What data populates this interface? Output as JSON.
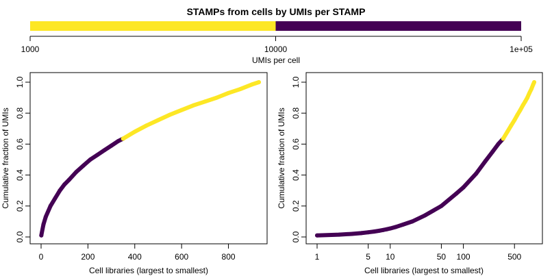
{
  "chart_data": [
    {
      "type": "bar",
      "title": "STAMPs from cells by UMIs per STAMP",
      "xlabel": "UMIs per cell",
      "x_scale": "log",
      "xlim": [
        1000,
        100000
      ],
      "x_ticks": [
        1000,
        10000,
        100000
      ],
      "x_tick_labels": [
        "1000",
        "10000",
        "1e+05"
      ],
      "segments": [
        {
          "from": 1000,
          "to": 10000,
          "color": "#FDE725"
        },
        {
          "from": 10000,
          "to": 100000,
          "color": "#440154"
        }
      ]
    },
    {
      "type": "scatter",
      "xlabel": "Cell libraries (largest to smallest)",
      "ylabel": "Cumulative fraction of UMIs",
      "xlim": [
        0,
        930
      ],
      "ylim": [
        0,
        1
      ],
      "x_ticks": [
        0,
        200,
        400,
        600,
        800
      ],
      "y_ticks": [
        0.0,
        0.2,
        0.4,
        0.6,
        0.8,
        1.0
      ],
      "y_tick_labels": [
        "0.0",
        "0.2",
        "0.4",
        "0.6",
        "0.8",
        "1.0"
      ],
      "series": [
        {
          "color": "#440154",
          "x": [
            1,
            10,
            20,
            40,
            60,
            80,
            100,
            120,
            150,
            180,
            210,
            240,
            270,
            300,
            330,
            350
          ],
          "y": [
            0.01,
            0.08,
            0.13,
            0.2,
            0.25,
            0.3,
            0.34,
            0.37,
            0.42,
            0.46,
            0.5,
            0.53,
            0.56,
            0.59,
            0.62,
            0.635
          ]
        },
        {
          "color": "#FDE725",
          "x": [
            350,
            400,
            450,
            500,
            550,
            600,
            650,
            700,
            750,
            800,
            850,
            900,
            930
          ],
          "y": [
            0.635,
            0.68,
            0.72,
            0.755,
            0.79,
            0.82,
            0.85,
            0.875,
            0.9,
            0.93,
            0.955,
            0.985,
            1.0
          ]
        }
      ]
    },
    {
      "type": "scatter",
      "xlabel": "Cell libraries (largest to smallest)",
      "ylabel": "Cumulative fraction of UMIs",
      "x_scale": "log",
      "xlim": [
        1,
        930
      ],
      "ylim": [
        0,
        1
      ],
      "x_ticks": [
        1,
        5,
        10,
        50,
        100,
        500
      ],
      "y_ticks": [
        0.0,
        0.2,
        0.4,
        0.6,
        0.8,
        1.0
      ],
      "y_tick_labels": [
        "0.0",
        "0.2",
        "0.4",
        "0.6",
        "0.8",
        "1.0"
      ],
      "series": [
        {
          "color": "#440154",
          "x": [
            1,
            2,
            3,
            4,
            5,
            6,
            7,
            8,
            9,
            10,
            12,
            15,
            20,
            30,
            50,
            80,
            100,
            150,
            200,
            250,
            300,
            350
          ],
          "y": [
            0.01,
            0.015,
            0.02,
            0.025,
            0.03,
            0.035,
            0.04,
            0.045,
            0.05,
            0.055,
            0.065,
            0.08,
            0.1,
            0.14,
            0.2,
            0.28,
            0.32,
            0.41,
            0.49,
            0.55,
            0.6,
            0.635
          ]
        },
        {
          "color": "#FDE725",
          "x": [
            350,
            400,
            450,
            500,
            550,
            600,
            650,
            700,
            750,
            800,
            850,
            900,
            930
          ],
          "y": [
            0.635,
            0.68,
            0.72,
            0.755,
            0.79,
            0.82,
            0.85,
            0.875,
            0.9,
            0.93,
            0.955,
            0.985,
            1.0
          ]
        }
      ]
    }
  ]
}
